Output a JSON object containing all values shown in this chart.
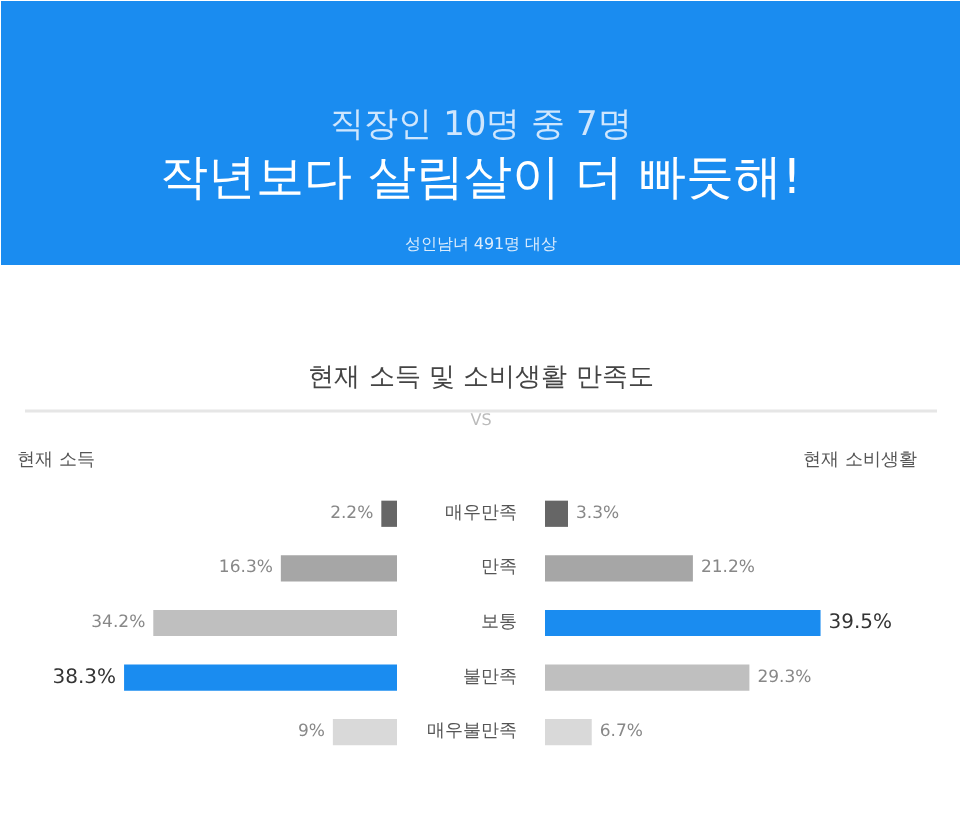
{
  "chart_data": [
    {
      "type": "other",
      "annotations": [
        "직장인 10명 중 7명",
        "작년보다 살림살이 더 빠듯해!",
        "성인남녀 491명 대상",
        "현재 소득 및 소비생활 만족도",
        "VS"
      ]
    },
    {
      "type": "bar",
      "orientation": "horizontal",
      "title": "현재 소득",
      "tick_labels": false,
      "categories": [
        null,
        null,
        null,
        null,
        null
      ],
      "colors": [
        "#666666",
        "#a6a6a6",
        "#bfbfbf",
        "#1a8cf0",
        "#d9d9d9"
      ],
      "values": [
        2.2,
        16.3,
        34.2,
        38.3,
        9
      ],
      "value_labels": [
        "2.2%",
        "16.3%",
        "34.2%",
        "38.3%",
        "9%"
      ]
    },
    {
      "type": "bar",
      "orientation": "horizontal",
      "title": "현재 소비생활",
      "tick_labels": "y",
      "categories": [
        "매우만족",
        "만족",
        "보통",
        "불만족",
        "매우불만족"
      ],
      "colors": [
        "#666666",
        "#a6a6a6",
        "#1a8cf0",
        "#bfbfbf",
        "#d9d9d9"
      ],
      "values": [
        3.3,
        21.2,
        39.5,
        29.3,
        6.7
      ],
      "value_labels": [
        "3.3%",
        "21.2%",
        "39.5%",
        "29.3%",
        "6.7%"
      ]
    }
  ]
}
